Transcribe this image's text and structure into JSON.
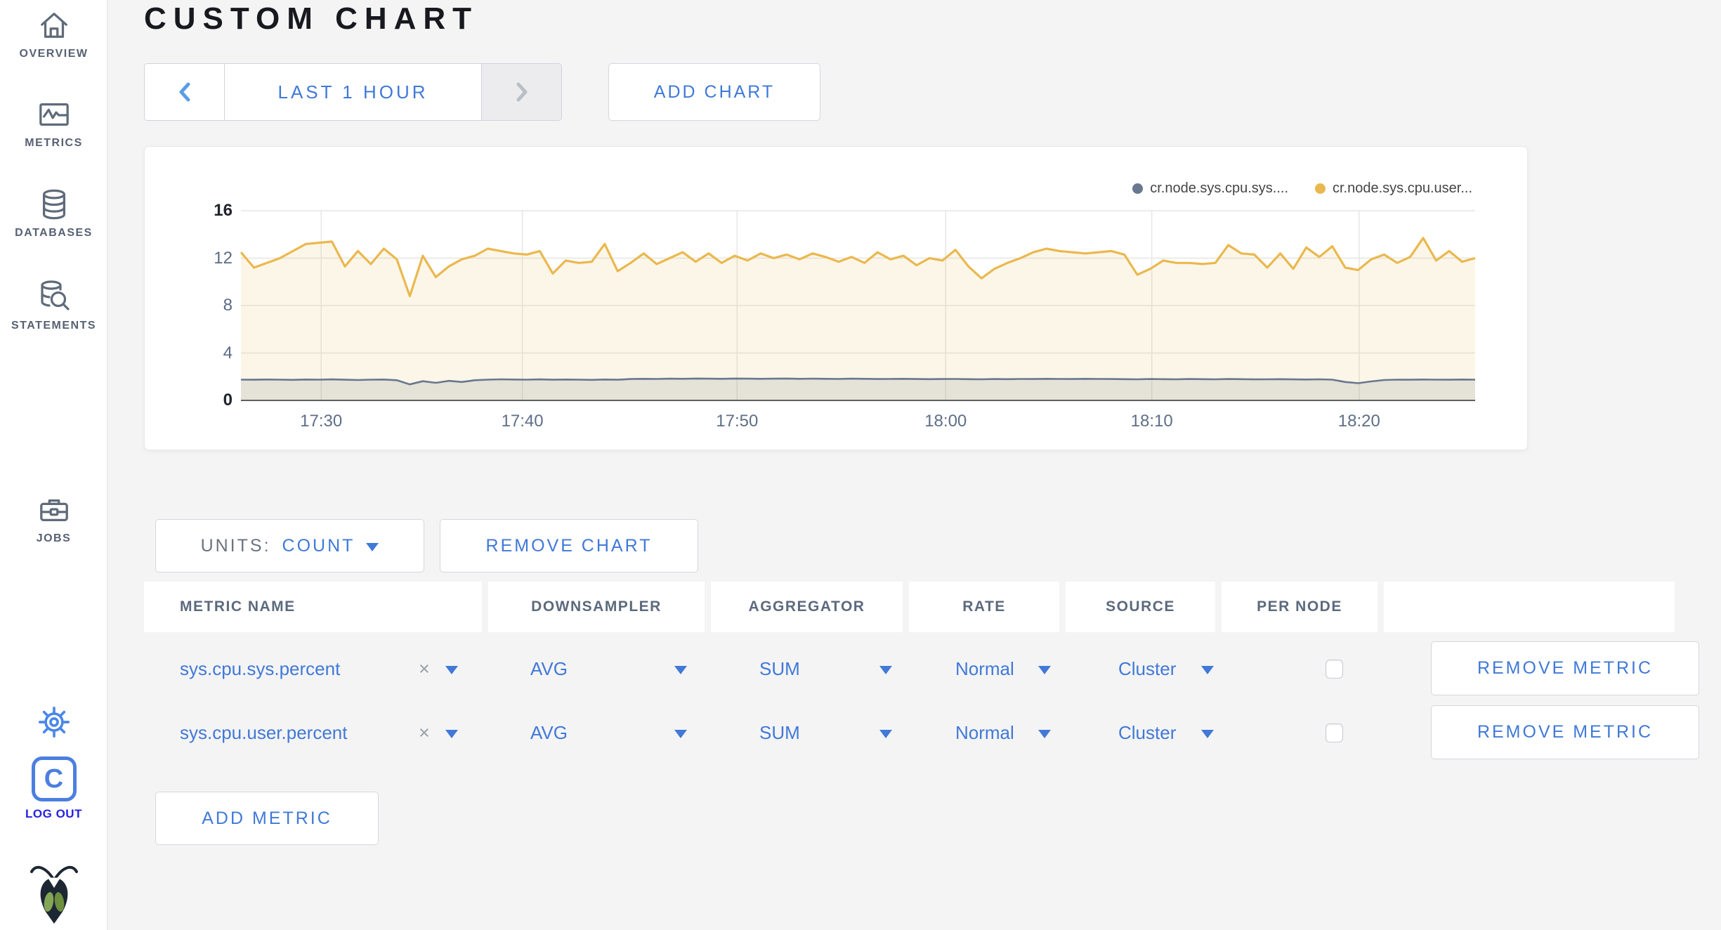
{
  "app": {
    "title": "CUSTOM CHART"
  },
  "sidebar": {
    "items": [
      {
        "label": "OVERVIEW",
        "icon": "home-icon"
      },
      {
        "label": "METRICS",
        "icon": "metrics-icon"
      },
      {
        "label": "DATABASES",
        "icon": "databases-icon"
      },
      {
        "label": "STATEMENTS",
        "icon": "statements-icon"
      },
      {
        "label": "JOBS",
        "icon": "jobs-icon"
      }
    ],
    "gear_icon": "settings-gear",
    "logo_letter": "C",
    "logout_label": "LOG OUT",
    "brand_icon": "cockroach-bug"
  },
  "toolbar": {
    "time_window_label": "LAST 1 HOUR",
    "prev_icon": "chevron-left",
    "next_icon": "chevron-right",
    "add_chart_label": "ADD CHART"
  },
  "chart_controls": {
    "units_prefix": "UNITS:",
    "units_value": "COUNT",
    "remove_chart_label": "REMOVE CHART",
    "add_metric_label": "ADD METRIC"
  },
  "metrics_table": {
    "headers": [
      "METRIC NAME",
      "DOWNSAMPLER",
      "AGGREGATOR",
      "RATE",
      "SOURCE",
      "PER NODE"
    ],
    "clear_symbol": "×",
    "rows": [
      {
        "metric_name": "sys.cpu.sys.percent",
        "downsampler": "AVG",
        "aggregator": "SUM",
        "rate": "Normal",
        "source": "Cluster",
        "per_node_checked": false,
        "remove_label": "REMOVE METRIC"
      },
      {
        "metric_name": "sys.cpu.user.percent",
        "downsampler": "AVG",
        "aggregator": "SUM",
        "rate": "Normal",
        "source": "Cluster",
        "per_node_checked": false,
        "remove_label": "REMOVE METRIC"
      }
    ]
  },
  "chart_data": {
    "type": "area",
    "title": "",
    "xlabel": "",
    "ylabel": "",
    "ylim": [
      0,
      16
    ],
    "y_ticks": [
      0,
      4,
      8,
      12,
      16
    ],
    "x_ticks": [
      {
        "label": "17:30",
        "pos": 0.065
      },
      {
        "label": "17:40",
        "pos": 0.228
      },
      {
        "label": "17:50",
        "pos": 0.402
      },
      {
        "label": "18:00",
        "pos": 0.571
      },
      {
        "label": "18:10",
        "pos": 0.738
      },
      {
        "label": "18:20",
        "pos": 0.906
      }
    ],
    "x_range": [
      "17:26",
      "18:25"
    ],
    "grid": true,
    "legend_position": "top-right",
    "axis_color": "#5b6b85",
    "grid_color": "#e6e6e4",
    "zero_line_color": "#55585e",
    "series": [
      {
        "name": "cr.node.sys.cpu.sys....",
        "color": "#68788f",
        "fill": "rgba(110,122,138,0.16)",
        "values": [
          1.75,
          1.74,
          1.76,
          1.75,
          1.73,
          1.76,
          1.75,
          1.77,
          1.74,
          1.72,
          1.75,
          1.76,
          1.7,
          1.35,
          1.62,
          1.48,
          1.65,
          1.55,
          1.7,
          1.75,
          1.78,
          1.76,
          1.75,
          1.77,
          1.74,
          1.76,
          1.75,
          1.73,
          1.76,
          1.74,
          1.8,
          1.82,
          1.81,
          1.83,
          1.82,
          1.84,
          1.83,
          1.82,
          1.84,
          1.83,
          1.82,
          1.83,
          1.84,
          1.82,
          1.83,
          1.82,
          1.81,
          1.83,
          1.82,
          1.8,
          1.81,
          1.82,
          1.8,
          1.79,
          1.8,
          1.81,
          1.79,
          1.78,
          1.8,
          1.79,
          1.81,
          1.8,
          1.82,
          1.81,
          1.8,
          1.82,
          1.81,
          1.8,
          1.79,
          1.78,
          1.8,
          1.79,
          1.78,
          1.8,
          1.79,
          1.78,
          1.8,
          1.79,
          1.77,
          1.78,
          1.79,
          1.77,
          1.76,
          1.78,
          1.75,
          1.55,
          1.45,
          1.6,
          1.72,
          1.75,
          1.74,
          1.76,
          1.75,
          1.74,
          1.76,
          1.75
        ]
      },
      {
        "name": "cr.node.sys.cpu.user...",
        "color": "#eab84e",
        "fill": "rgba(234,184,78,0.13)",
        "values": [
          12.5,
          11.2,
          11.6,
          12.0,
          12.6,
          13.2,
          13.3,
          13.4,
          11.3,
          12.6,
          11.5,
          12.8,
          11.9,
          8.8,
          12.2,
          10.4,
          11.3,
          11.9,
          12.2,
          12.8,
          12.6,
          12.4,
          12.3,
          12.6,
          10.7,
          11.8,
          11.6,
          11.7,
          13.2,
          10.9,
          11.6,
          12.4,
          11.5,
          12.0,
          12.5,
          11.7,
          12.4,
          11.6,
          12.2,
          11.8,
          12.4,
          12.0,
          12.3,
          11.9,
          12.4,
          12.1,
          11.7,
          12.1,
          11.6,
          12.5,
          11.9,
          12.2,
          11.4,
          12.0,
          11.8,
          12.7,
          11.3,
          10.3,
          11.1,
          11.6,
          12.0,
          12.5,
          12.8,
          12.6,
          12.5,
          12.4,
          12.5,
          12.6,
          12.3,
          10.6,
          11.1,
          11.8,
          11.6,
          11.6,
          11.5,
          11.6,
          13.1,
          12.4,
          12.3,
          11.2,
          12.4,
          11.1,
          12.9,
          12.1,
          13.0,
          11.2,
          11.0,
          11.9,
          12.3,
          11.6,
          12.1,
          13.7,
          11.8,
          12.6,
          11.7,
          12.0
        ]
      }
    ]
  }
}
